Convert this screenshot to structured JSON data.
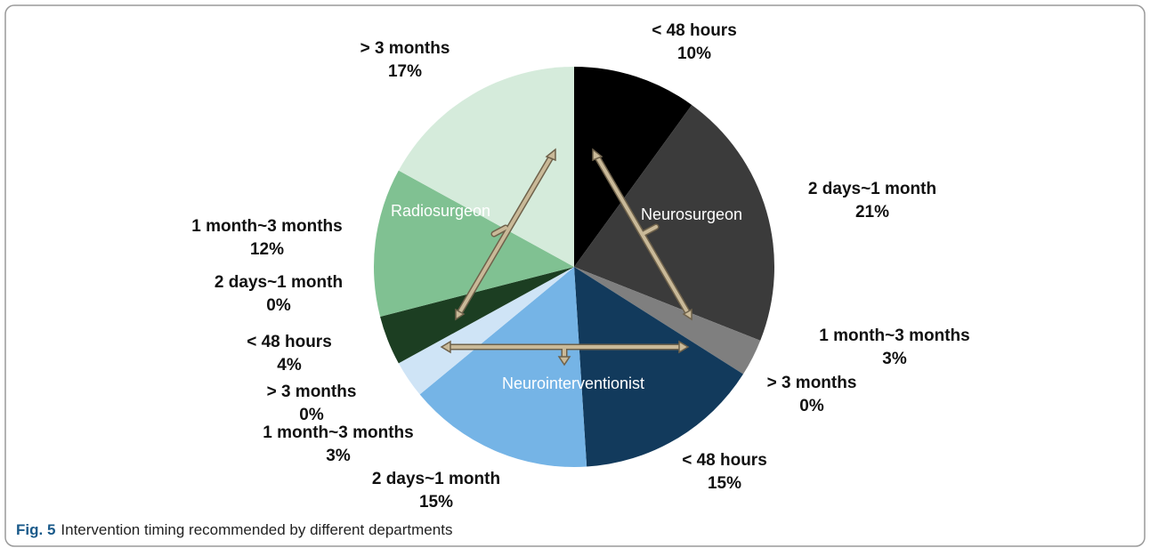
{
  "chart_data": {
    "type": "pie",
    "categories": [
      "< 48 hours",
      "2 days~1 month",
      "1 month~3 months",
      "> 3 months",
      "< 48 hours",
      "2 days~1 month",
      "1 month~3 months",
      "> 3 months",
      "< 48 hours",
      "2 days~1 month",
      "1 month~3 months",
      "> 3 months"
    ],
    "values": [
      10,
      21,
      3,
      0,
      15,
      15,
      3,
      0,
      4,
      0,
      12,
      17
    ],
    "value_labels": [
      "10%",
      "21%",
      "3%",
      "0%",
      "15%",
      "15%",
      "3%",
      "0%",
      "4%",
      "0%",
      "12%",
      "17%"
    ],
    "colors": [
      "#000000",
      "#3b3b3b",
      "#7f7f7f",
      "#bdbdbd",
      "#123a5c",
      "#75b4e6",
      "#cfe4f6",
      "#e8f2fb",
      "#1c3e22",
      "#3f7a4a",
      "#80c192",
      "#d5ebdb"
    ],
    "group_labels": [
      "Neurosurgeon",
      "Neurointerventionist",
      "Radiosurgeon"
    ]
  },
  "caption": {
    "label": "Fig. 5",
    "text": "Intervention timing recommended by different departments"
  }
}
